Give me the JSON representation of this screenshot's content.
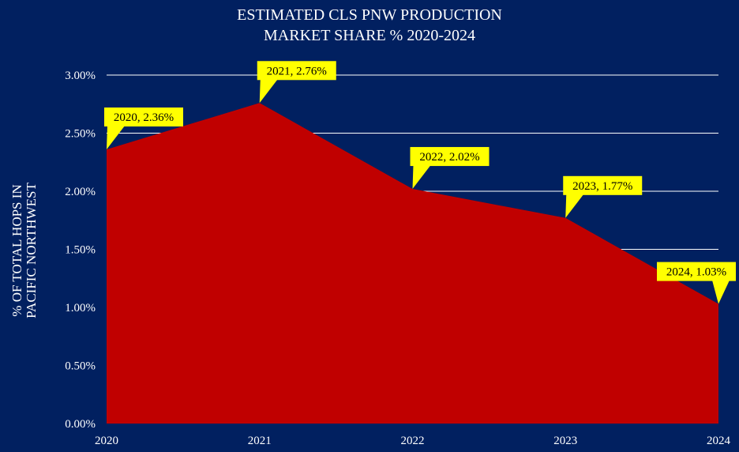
{
  "chart_data": {
    "type": "area",
    "title_lines": [
      "ESTIMATED CLS PNW PRODUCTION",
      "MARKET SHARE % 2020-2024"
    ],
    "ylabel_lines": [
      "% OF TOTAL HOPS IN",
      "PACIFIC NORTHWEST"
    ],
    "xlabel": "",
    "categories": [
      "2020",
      "2021",
      "2022",
      "2023",
      "2024"
    ],
    "series": [
      {
        "values": [
          2.36,
          2.76,
          2.02,
          1.77,
          1.03
        ]
      }
    ],
    "data_labels": [
      "2020, 2.36%",
      "2021, 2.76%",
      "2022, 2.02%",
      "2023, 1.77%",
      "2024, 1.03%"
    ],
    "y_ticks": [
      "0.00%",
      "0.50%",
      "1.00%",
      "1.50%",
      "2.00%",
      "2.50%",
      "3.00%"
    ],
    "ylim": [
      0,
      3
    ],
    "grid": true,
    "legend": "none",
    "colors": {
      "background": "#012060",
      "area": "#C00000",
      "gridline": "#FFFFFF",
      "label_fill": "#FFFF00",
      "label_text": "#000000",
      "text": "#FFFFFF"
    }
  }
}
